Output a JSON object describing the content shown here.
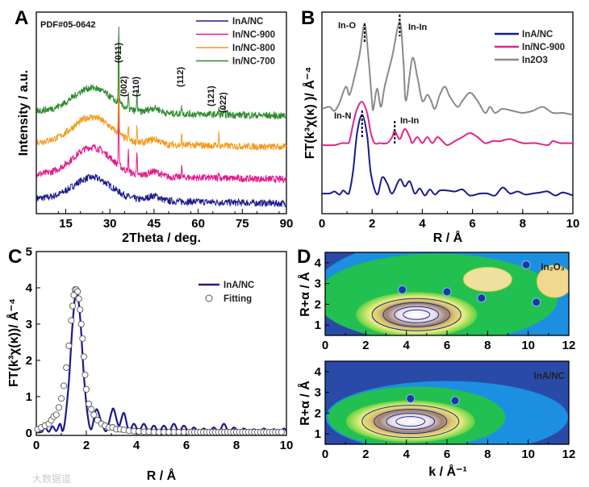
{
  "chart_data": [
    {
      "panel": "A",
      "type": "line",
      "xlabel": "2Theta / deg.",
      "ylabel": "Intensity / a.u.",
      "xlim": [
        5,
        90
      ],
      "ylim": [
        0,
        10
      ],
      "xticks": [
        "15",
        "30",
        "45",
        "60",
        "75",
        "90"
      ],
      "pdf_label": "PDF#05-0642",
      "reflections": [
        {
          "label": "(011)",
          "x": 33
        },
        {
          "label": "(002)",
          "x": 36.3
        },
        {
          "label": "(110)",
          "x": 39.2
        },
        {
          "label": "(112)",
          "x": 54.4
        },
        {
          "label": "(121)",
          "x": 67
        },
        {
          "label": "(022)",
          "x": 69
        }
      ],
      "series": [
        {
          "name": "InA/NC",
          "color": "#1a1a8c",
          "baseline": 0.5,
          "hump": 1.1,
          "peaks": []
        },
        {
          "name": "In/NC-900",
          "color": "#e0188a",
          "baseline": 1.7,
          "hump": 1.4,
          "peaks": [
            [
              33,
              3.5
            ],
            [
              36.3,
              1.0
            ],
            [
              39.2,
              1.0
            ],
            [
              54.4,
              0.6
            ],
            [
              67,
              0.4
            ]
          ]
        },
        {
          "name": "In/NC-800",
          "color": "#f39a1e",
          "baseline": 3.3,
          "hump": 1.3,
          "peaks": [
            [
              33,
              5.2
            ],
            [
              36.3,
              0.7
            ],
            [
              39.2,
              0.9
            ],
            [
              54.4,
              0.5
            ],
            [
              67,
              0.6
            ]
          ]
        },
        {
          "name": "In/NC-700",
          "color": "#2e8b2e",
          "baseline": 4.85,
          "hump": 1.2,
          "peaks": [
            [
              33,
              3.9
            ],
            [
              36.3,
              0.7
            ],
            [
              39.2,
              1.0
            ],
            [
              54.4,
              0.5
            ],
            [
              67,
              0.3
            ],
            [
              69,
              0.3
            ]
          ]
        }
      ],
      "legend": [
        "InA/NC",
        "In/NC-900",
        "In/NC-800",
        "In/NC-700"
      ]
    },
    {
      "panel": "B",
      "type": "line",
      "xlabel": "R / Å",
      "ylabel": "FT(k³χ(κ) )/ Å⁻⁴",
      "xlim": [
        0,
        10
      ],
      "ylim": [
        0,
        10
      ],
      "xticks": [
        "0",
        "2",
        "4",
        "6",
        "8",
        "10"
      ],
      "annotations": [
        {
          "text": "In-O",
          "x": 1.7
        },
        {
          "text": "In-In",
          "x": 3.1
        },
        {
          "text": "In-N",
          "x": 1.6
        },
        {
          "text": "In-In",
          "x": 2.9
        }
      ],
      "series": [
        {
          "name": "InA/NC",
          "color": "#1a1a8c",
          "x": [
            0,
            0.3,
            0.5,
            0.7,
            0.85,
            1.0,
            1.1,
            1.25,
            1.4,
            1.6,
            1.8,
            1.95,
            2.2,
            2.4,
            2.6,
            2.8,
            3.1,
            3.3,
            3.5,
            3.7,
            3.9,
            4.1,
            4.3,
            4.5,
            4.7,
            5.0,
            5.3,
            5.6,
            5.9,
            6.3,
            6.6,
            6.9,
            7.2,
            7.5,
            7.8,
            8.1,
            8.4,
            8.7,
            9.0,
            9.3,
            9.6,
            10
          ],
          "y": [
            1.0,
            1.0,
            1.1,
            0.95,
            1.15,
            1.0,
            1.1,
            2.2,
            4.0,
            4.9,
            3.9,
            2.0,
            0.95,
            1.8,
            1.5,
            1.0,
            1.7,
            1.35,
            1.6,
            1.0,
            1.25,
            0.9,
            1.2,
            0.95,
            1.15,
            1.15,
            1.1,
            1.2,
            0.9,
            1.0,
            1.0,
            0.9,
            1.3,
            1.0,
            1.1,
            0.95,
            1.0,
            1.05,
            1.1,
            0.9,
            1.05,
            0.9
          ]
        },
        {
          "name": "In/NC-900",
          "color": "#e0248e",
          "x": [
            0,
            0.5,
            0.8,
            1.0,
            1.1,
            1.25,
            1.4,
            1.6,
            1.8,
            1.95,
            2.1,
            2.3,
            2.6,
            2.8,
            2.9,
            3.1,
            3.3,
            3.5,
            3.6,
            3.8,
            4.0,
            4.2,
            4.4,
            4.6,
            4.8,
            5.0,
            5.3,
            5.6,
            5.9,
            6.2,
            6.5,
            6.8,
            7.1,
            7.5,
            8.0,
            8.5,
            9.0,
            9.2,
            9.5,
            10
          ],
          "y": [
            3.4,
            3.4,
            3.5,
            3.5,
            3.6,
            4.5,
            5.2,
            5.55,
            5.0,
            4.0,
            3.5,
            3.5,
            3.5,
            3.8,
            4.1,
            3.7,
            4.2,
            3.8,
            3.5,
            3.8,
            3.5,
            3.8,
            3.5,
            3.8,
            3.6,
            3.4,
            3.6,
            3.8,
            4.0,
            3.8,
            3.5,
            3.6,
            3.6,
            3.7,
            3.5,
            3.5,
            3.4,
            3.6,
            3.5,
            3.5
          ]
        },
        {
          "name": "In2O3",
          "color": "#8a8a8a",
          "x": [
            0,
            0.3,
            0.5,
            0.7,
            0.95,
            1.1,
            1.3,
            1.5,
            1.7,
            1.85,
            2.0,
            2.05,
            2.2,
            2.35,
            2.5,
            2.8,
            3.1,
            3.25,
            3.35,
            3.6,
            3.8,
            4.0,
            4.2,
            4.35,
            4.5,
            4.7,
            4.9,
            5.1,
            5.4,
            5.6,
            5.9,
            6.2,
            6.5,
            6.7,
            6.9,
            7.2,
            7.6,
            8.0,
            8.4,
            8.8,
            9.2,
            9.6,
            10
          ],
          "y": [
            5.2,
            5.3,
            5.1,
            5.5,
            6.3,
            5.9,
            6.8,
            7.9,
            9.4,
            7.8,
            5.5,
            5.2,
            6.2,
            5.3,
            6.3,
            7.8,
            9.5,
            7.5,
            5.6,
            7.7,
            6.8,
            5.6,
            5.9,
            5.6,
            5.2,
            5.9,
            6.3,
            5.8,
            5.3,
            5.6,
            6.0,
            5.6,
            5.0,
            5.3,
            5.0,
            5.2,
            5.1,
            5.0,
            5.1,
            5.3,
            5.0,
            5.0,
            4.9
          ]
        }
      ],
      "legend": [
        "InA/NC",
        "In/NC-900",
        "In2O3"
      ]
    },
    {
      "panel": "C",
      "type": "line",
      "xlabel": "R / Å",
      "ylabel": "FT(k³χ(κ))/ Å⁻⁴",
      "xlim": [
        0,
        10
      ],
      "ylim": [
        -0.07,
        5
      ],
      "xticks": [
        "0",
        "2",
        "4",
        "6",
        "8",
        "10"
      ],
      "yticks": [
        "0",
        "1",
        "2",
        "3",
        "4",
        "5"
      ],
      "series": [
        {
          "name": "InA/NC",
          "color": "#1a1a8c",
          "x": [
            0,
            0.2,
            0.35,
            0.5,
            0.65,
            0.8,
            0.95,
            1.05,
            1.15,
            1.3,
            1.45,
            1.6,
            1.75,
            1.9,
            2.05,
            2.2,
            2.4,
            2.6,
            2.8,
            3.0,
            3.1,
            3.3,
            3.5,
            3.7,
            3.9,
            4.1,
            4.3,
            4.5,
            4.7,
            4.9,
            5.1,
            5.3,
            5.5,
            5.7,
            5.9,
            6.1,
            6.3,
            6.5,
            6.7,
            6.9,
            7.1,
            7.3,
            7.5,
            7.7,
            7.9,
            8.1,
            8.3,
            8.5,
            8.7,
            8.9,
            9.1,
            9.3,
            9.5,
            9.7,
            9.9,
            10
          ],
          "y": [
            0.1,
            0.02,
            0.15,
            0.03,
            0.18,
            0.05,
            0.25,
            0.05,
            0.35,
            1.4,
            3.0,
            3.95,
            3.2,
            1.6,
            0.5,
            0.1,
            0.65,
            0.3,
            0.05,
            0.55,
            0.65,
            0.2,
            0.55,
            0.05,
            0.25,
            0.05,
            0.25,
            0.02,
            0.2,
            0.02,
            0.2,
            0.02,
            0.25,
            0.02,
            0.2,
            0.02,
            0.15,
            0.02,
            0.12,
            0.02,
            0.15,
            0.02,
            0.25,
            0.02,
            0.15,
            0.02,
            0.12,
            0.02,
            0.1,
            0.02,
            0.12,
            0.02,
            0.1,
            0.02,
            0.12,
            0.05
          ]
        },
        {
          "name": "Fitting",
          "marker": "circle",
          "x": [
            0.05,
            0.2,
            0.35,
            0.5,
            0.6,
            0.7,
            0.8,
            0.9,
            1.0,
            1.1,
            1.2,
            1.3,
            1.4,
            1.45,
            1.5,
            1.55,
            1.6,
            1.65,
            1.7,
            1.75,
            1.8,
            1.85,
            1.9,
            1.95,
            2.0,
            2.1,
            2.2,
            2.3,
            2.45,
            2.6,
            2.75,
            2.9,
            3.05,
            3.2,
            3.35,
            3.5,
            3.7,
            3.9,
            4.1,
            4.3,
            4.5,
            4.7,
            4.9,
            5.1,
            5.3,
            5.5,
            5.7,
            5.9,
            6.1
          ],
          "y": [
            0.1,
            0.15,
            0.2,
            0.25,
            0.35,
            0.45,
            0.5,
            0.7,
            0.95,
            1.3,
            1.8,
            2.4,
            3.1,
            3.5,
            3.8,
            3.95,
            3.95,
            3.9,
            3.7,
            3.4,
            3.0,
            2.6,
            2.1,
            1.6,
            1.2,
            0.8,
            0.65,
            0.5,
            0.35,
            0.25,
            0.2,
            0.15,
            0.15,
            0.1,
            0.1,
            0.08,
            0.06,
            0.05,
            0.04,
            0.03,
            0.03,
            0.02,
            0.02,
            0.02,
            0.02,
            0.02,
            0.02,
            0.02,
            0.02
          ]
        }
      ],
      "legend": [
        "InA/NC",
        "Fitting"
      ]
    },
    {
      "panel": "D",
      "type": "heatmap",
      "xlabel": "k / Å⁻¹",
      "ylabel": "R+α / Å",
      "xlim": [
        0,
        12
      ],
      "ylim": [
        0.5,
        4.5
      ],
      "xticks": [
        "0",
        "2",
        "4",
        "6",
        "8",
        "10",
        "12"
      ],
      "yticks": [
        "1",
        "2",
        "3",
        "4"
      ],
      "maps": [
        {
          "name": "In2O3",
          "max_k": 4.5,
          "max_R": 1.5
        },
        {
          "name": "InA/NC",
          "max_k": 4.2,
          "max_R": 1.6
        }
      ]
    }
  ],
  "labels": {
    "A": "A",
    "B": "B",
    "C": "C",
    "D": "D",
    "d_top": "In₂O₃",
    "d_bottom": "InA/NC"
  },
  "watermark": "大数据道"
}
